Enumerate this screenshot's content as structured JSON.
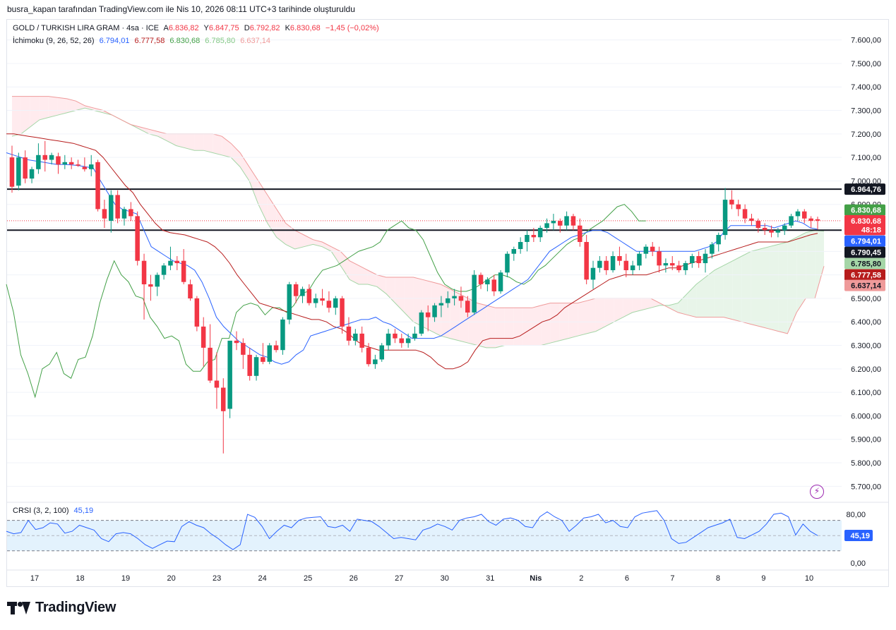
{
  "header": {
    "author_line": "busra_kapan tarafından TradingView.com ile Nis 10, 2026 08:11 UTC+3 tarihinde oluşturuldu"
  },
  "legend": {
    "symbol": "GOLD / TURKISH LIRA GRAM · 4sa · ICE",
    "open_label": "A",
    "open": "6.836,82",
    "high_label": "Y",
    "high": "6.847,75",
    "low_label": "D",
    "low": "6.792,82",
    "close_label": "K",
    "close": "6.830,68",
    "change": "−1,45 (−0,02%)",
    "ichimoku_name": "İchimoku (9, 26, 52, 26)",
    "ichimoku_conversion": "6.794,01",
    "ichimoku_base": "6.777,58",
    "ichimoku_lagging": "6.830,68",
    "ichimoku_span_a": "6.785,80",
    "ichimoku_span_b": "6.637,14",
    "crsi_name": "CRSI (3, 2, 100)",
    "crsi_value": "45,19"
  },
  "colors": {
    "up": "#089981",
    "down": "#f23645",
    "conversion": "#2962ff",
    "base": "#b71c1c",
    "lagging": "#43a047",
    "span_a": "#a5d6a7",
    "span_b": "#ef9a9a",
    "cloud_bull": "#e8f5e9",
    "cloud_bear": "#ffebee",
    "crsi": "#2962ff",
    "crsi_band": "#e3f2fd"
  },
  "price_axis": {
    "ticks": [
      "7.600,00",
      "7.500,00",
      "7.400,00",
      "7.300,00",
      "7.200,00",
      "7.100,00",
      "7.000,00",
      "6.900,00",
      "6.800,00",
      "6.700,00",
      "6.600,00",
      "6.500,00",
      "6.400,00",
      "6.300,00",
      "6.200,00",
      "6.100,00",
      "6.000,00",
      "5.900,00",
      "5.800,00",
      "5.700,00"
    ],
    "tick_values": [
      7600,
      7500,
      7400,
      7300,
      7200,
      7100,
      7000,
      6900,
      6800,
      6700,
      6600,
      6500,
      6400,
      6300,
      6200,
      6100,
      6000,
      5900,
      5800,
      5700
    ],
    "labels": [
      {
        "text": "6.964,76",
        "value": 6964.76,
        "bg": "#131722",
        "fg": "#ffffff"
      },
      {
        "text": "6.830,68",
        "value": 6876,
        "bg": "#43a047",
        "fg": "#ffffff"
      },
      {
        "text": "6.830,68",
        "value": 6830.68,
        "bg": "#f23645",
        "fg": "#ffffff"
      },
      {
        "text": "48:18",
        "value": 6793,
        "bg": "#f23645",
        "fg": "#ffffff"
      },
      {
        "text": "6.794,01",
        "value": 6744,
        "bg": "#2962ff",
        "fg": "#ffffff"
      },
      {
        "text": "6.790,45",
        "value": 6696,
        "bg": "#131722",
        "fg": "#ffffff"
      },
      {
        "text": "6.785,80",
        "value": 6648,
        "bg": "#a5d6a7",
        "fg": "#131722"
      },
      {
        "text": "6.777,58",
        "value": 6600,
        "bg": "#b71c1c",
        "fg": "#ffffff"
      },
      {
        "text": "6.637,14",
        "value": 6555,
        "bg": "#ef9a9a",
        "fg": "#131722"
      }
    ]
  },
  "crsi_axis": {
    "ticks": [
      "80,00",
      "0,00"
    ],
    "tick_values": [
      80,
      0
    ],
    "value_label": "45,19"
  },
  "time_axis": {
    "labels": [
      "17",
      "18",
      "19",
      "20",
      "23",
      "24",
      "25",
      "26",
      "27",
      "30",
      "31",
      "Nis",
      "2",
      "6",
      "7",
      "8",
      "9",
      "10"
    ]
  },
  "chart_data": {
    "type": "candlestick",
    "title": "GOLD / TURKISH LIRA GRAM · 4sa · ICE",
    "ylim": [
      5650,
      7680
    ],
    "horizontal_lines": [
      6964.76,
      6790.45
    ],
    "last_price": 6830.68,
    "candles": [
      [
        7100,
        7150,
        6950,
        6975
      ],
      [
        6980,
        7120,
        6960,
        7100
      ],
      [
        7100,
        7130,
        6990,
        7010
      ],
      [
        7010,
        7060,
        6990,
        7050
      ],
      [
        7050,
        7160,
        7030,
        7110
      ],
      [
        7110,
        7170,
        7040,
        7090
      ],
      [
        7090,
        7120,
        7070,
        7110
      ],
      [
        7105,
        7120,
        7030,
        7070
      ],
      [
        7070,
        7110,
        7050,
        7080
      ],
      [
        7080,
        7100,
        7050,
        7070
      ],
      [
        7070,
        7090,
        7060,
        7065
      ],
      [
        7060,
        7100,
        7040,
        7050
      ],
      [
        7050,
        7110,
        7020,
        7070
      ],
      [
        7080,
        7090,
        6870,
        6880
      ],
      [
        6880,
        6920,
        6800,
        6840
      ],
      [
        6830,
        6960,
        6780,
        6940
      ],
      [
        6940,
        6960,
        6820,
        6840
      ],
      [
        6840,
        6890,
        6810,
        6880
      ],
      [
        6880,
        6910,
        6830,
        6850
      ],
      [
        6850,
        6870,
        6640,
        6660
      ],
      [
        6660,
        6690,
        6410,
        6560
      ],
      [
        6560,
        6600,
        6490,
        6550
      ],
      [
        6550,
        6610,
        6510,
        6600
      ],
      [
        6600,
        6650,
        6580,
        6640
      ],
      [
        6640,
        6720,
        6620,
        6660
      ],
      [
        6660,
        6680,
        6620,
        6650
      ],
      [
        6660,
        6710,
        6560,
        6570
      ],
      [
        6560,
        6580,
        6490,
        6500
      ],
      [
        6500,
        6510,
        6360,
        6380
      ],
      [
        6380,
        6420,
        6210,
        6290
      ],
      [
        6290,
        6390,
        6140,
        6150
      ],
      [
        6150,
        6270,
        6030,
        6120
      ],
      [
        6120,
        6160,
        5840,
        6020
      ],
      [
        6030,
        6300,
        5990,
        6320
      ],
      [
        6320,
        6360,
        6280,
        6310
      ],
      [
        6310,
        6330,
        6200,
        6260
      ],
      [
        6260,
        6290,
        6150,
        6170
      ],
      [
        6170,
        6260,
        6150,
        6250
      ],
      [
        6250,
        6310,
        6220,
        6230
      ],
      [
        6230,
        6310,
        6220,
        6300
      ],
      [
        6300,
        6320,
        6270,
        6280
      ],
      [
        6280,
        6420,
        6260,
        6410
      ],
      [
        6410,
        6570,
        6390,
        6560
      ],
      [
        6560,
        6570,
        6480,
        6510
      ],
      [
        6510,
        6550,
        6480,
        6540
      ],
      [
        6540,
        6560,
        6470,
        6480
      ],
      [
        6480,
        6520,
        6460,
        6500
      ],
      [
        6500,
        6540,
        6470,
        6490
      ],
      [
        6490,
        6530,
        6440,
        6460
      ],
      [
        6460,
        6510,
        6430,
        6500
      ],
      [
        6500,
        6510,
        6350,
        6380
      ],
      [
        6380,
        6420,
        6300,
        6320
      ],
      [
        6320,
        6370,
        6300,
        6350
      ],
      [
        6350,
        6380,
        6270,
        6290
      ],
      [
        6290,
        6310,
        6210,
        6220
      ],
      [
        6220,
        6260,
        6200,
        6240
      ],
      [
        6240,
        6310,
        6230,
        6300
      ],
      [
        6300,
        6370,
        6280,
        6350
      ],
      [
        6350,
        6370,
        6310,
        6330
      ],
      [
        6330,
        6350,
        6290,
        6310
      ],
      [
        6310,
        6350,
        6290,
        6330
      ],
      [
        6330,
        6380,
        6320,
        6350
      ],
      [
        6350,
        6450,
        6340,
        6440
      ],
      [
        6440,
        6470,
        6360,
        6420
      ],
      [
        6420,
        6480,
        6400,
        6470
      ],
      [
        6470,
        6510,
        6420,
        6480
      ],
      [
        6480,
        6530,
        6460,
        6500
      ],
      [
        6500,
        6540,
        6470,
        6510
      ],
      [
        6510,
        6550,
        6460,
        6490
      ],
      [
        6490,
        6510,
        6420,
        6440
      ],
      [
        6440,
        6620,
        6430,
        6600
      ],
      [
        6600,
        6610,
        6540,
        6560
      ],
      [
        6560,
        6590,
        6530,
        6580
      ],
      [
        6580,
        6600,
        6510,
        6530
      ],
      [
        6530,
        6620,
        6520,
        6610
      ],
      [
        6610,
        6700,
        6590,
        6690
      ],
      [
        6690,
        6720,
        6660,
        6710
      ],
      [
        6710,
        6760,
        6690,
        6740
      ],
      [
        6740,
        6790,
        6700,
        6770
      ],
      [
        6770,
        6800,
        6740,
        6760
      ],
      [
        6760,
        6810,
        6740,
        6800
      ],
      [
        6800,
        6840,
        6780,
        6820
      ],
      [
        6820,
        6860,
        6790,
        6830
      ],
      [
        6830,
        6840,
        6780,
        6810
      ],
      [
        6810,
        6870,
        6790,
        6850
      ],
      [
        6850,
        6860,
        6790,
        6810
      ],
      [
        6810,
        6840,
        6720,
        6740
      ],
      [
        6740,
        6770,
        6560,
        6580
      ],
      [
        6580,
        6660,
        6540,
        6630
      ],
      [
        6630,
        6680,
        6610,
        6660
      ],
      [
        6660,
        6680,
        6600,
        6620
      ],
      [
        6620,
        6700,
        6610,
        6680
      ],
      [
        6680,
        6720,
        6640,
        6660
      ],
      [
        6660,
        6690,
        6590,
        6620
      ],
      [
        6620,
        6660,
        6600,
        6640
      ],
      [
        6640,
        6700,
        6620,
        6690
      ],
      [
        6690,
        6730,
        6670,
        6720
      ],
      [
        6720,
        6740,
        6680,
        6700
      ],
      [
        6700,
        6720,
        6610,
        6640
      ],
      [
        6640,
        6670,
        6610,
        6650
      ],
      [
        6650,
        6680,
        6620,
        6640
      ],
      [
        6640,
        6660,
        6610,
        6620
      ],
      [
        6620,
        6660,
        6600,
        6650
      ],
      [
        6650,
        6690,
        6630,
        6680
      ],
      [
        6680,
        6700,
        6630,
        6650
      ],
      [
        6650,
        6710,
        6610,
        6690
      ],
      [
        6690,
        6740,
        6670,
        6730
      ],
      [
        6730,
        6780,
        6700,
        6770
      ],
      [
        6770,
        6970,
        6750,
        6920
      ],
      [
        6920,
        6960,
        6880,
        6900
      ],
      [
        6900,
        6920,
        6850,
        6880
      ],
      [
        6880,
        6900,
        6820,
        6840
      ],
      [
        6840,
        6860,
        6810,
        6830
      ],
      [
        6830,
        6840,
        6780,
        6800
      ],
      [
        6800,
        6820,
        6770,
        6790
      ],
      [
        6790,
        6810,
        6760,
        6780
      ],
      [
        6780,
        6800,
        6760,
        6790
      ],
      [
        6790,
        6820,
        6770,
        6810
      ],
      [
        6810,
        6860,
        6800,
        6850
      ],
      [
        6850,
        6880,
        6830,
        6870
      ],
      [
        6870,
        6880,
        6820,
        6840
      ],
      [
        6840,
        6850,
        6800,
        6830
      ],
      [
        6836.82,
        6847.75,
        6792.82,
        6830.68
      ]
    ],
    "conversion_line": [
      7120,
      7110,
      7100,
      7090,
      7085,
      7080,
      7075,
      7070,
      7070,
      7068,
      7065,
      7060,
      7055,
      7000,
      6950,
      6900,
      6880,
      6870,
      6860,
      6790,
      6720,
      6700,
      6680,
      6660,
      6650,
      6640,
      6620,
      6570,
      6500,
      6420,
      6380,
      6350,
      6320,
      6300,
      6280,
      6260,
      6250,
      6230,
      6220,
      6230,
      6260,
      6280,
      6340,
      6350,
      6360,
      6370,
      6380,
      6390,
      6400,
      6410,
      6410,
      6420,
      6400,
      6390,
      6370,
      6350,
      6330,
      6330,
      6330,
      6330,
      6340,
      6360,
      6380,
      6400,
      6420,
      6440,
      6460,
      6480,
      6500,
      6520,
      6540,
      6560,
      6580,
      6620,
      6660,
      6700,
      6720,
      6740,
      6760,
      6770,
      6780,
      6790,
      6790,
      6780,
      6760,
      6740,
      6720,
      6700,
      6700,
      6700,
      6700,
      6700,
      6700,
      6700,
      6700,
      6700,
      6710,
      6720,
      6740,
      6780,
      6810,
      6810,
      6810,
      6810,
      6810,
      6810,
      6800,
      6810,
      6820,
      6830,
      6820,
      6800,
      6794
    ],
    "base_line": [
      7200,
      7200,
      7195,
      7190,
      7185,
      7180,
      7175,
      7170,
      7165,
      7160,
      7150,
      7140,
      7130,
      7100,
      7060,
      7020,
      6980,
      6950,
      6900,
      6860,
      6820,
      6790,
      6780,
      6775,
      6770,
      6760,
      6750,
      6740,
      6720,
      6690,
      6650,
      6600,
      6560,
      6520,
      6480,
      6470,
      6460,
      6450,
      6440,
      6430,
      6420,
      6410,
      6410,
      6400,
      6380,
      6370,
      6350,
      6320,
      6300,
      6290,
      6280,
      6280,
      6280,
      6280,
      6280,
      6280,
      6270,
      6250,
      6220,
      6200,
      6200,
      6210,
      6230,
      6280,
      6320,
      6330,
      6330,
      6330,
      6330,
      6340,
      6360,
      6380,
      6400,
      6410,
      6430,
      6460,
      6480,
      6500,
      6520,
      6540,
      6560,
      6580,
      6590,
      6600,
      6600,
      6600,
      6600,
      6610,
      6620,
      6630,
      6630,
      6640,
      6650,
      6660,
      6670,
      6680,
      6690,
      6700,
      6710,
      6720,
      6730,
      6740,
      6740,
      6740,
      6740,
      6740,
      6750,
      6760,
      6770,
      6777
    ],
    "lagging_line": [
      6560,
      6440,
      6260,
      6180,
      6080,
      6200,
      6220,
      6270,
      6180,
      6160,
      6240,
      6250,
      6340,
      6480,
      6580,
      6660,
      6600,
      6570,
      6510,
      6500,
      6420,
      6380,
      6330,
      6340,
      6320,
      6220,
      6190,
      6190,
      6230,
      6240,
      6330,
      6330,
      6440,
      6470,
      6480,
      6470,
      6430,
      6460,
      6460,
      6440,
      6470,
      6520,
      6530,
      6580,
      6620,
      6630,
      6640,
      6660,
      6680,
      6700,
      6710,
      6720,
      6740,
      6790,
      6810,
      6830,
      6800,
      6790,
      6750,
      6680,
      6610,
      6560,
      6540,
      6530,
      6530,
      6540,
      6560,
      6580,
      6600,
      6600,
      6590,
      6570,
      6560,
      6580,
      6620,
      6640,
      6670,
      6700,
      6730,
      6750,
      6760,
      6790,
      6810,
      6830,
      6860,
      6890,
      6900,
      6870,
      6830,
      6830
    ],
    "span_a": [
      7190,
      7200,
      7230,
      7260,
      7270,
      7280,
      7290,
      7300,
      7310,
      7300,
      7290,
      7280,
      7260,
      7240,
      7220,
      7200,
      7190,
      7170,
      7150,
      7140,
      7130,
      7130,
      7120,
      7110,
      7100,
      7060,
      7000,
      6900,
      6820,
      6760,
      6730,
      6710,
      6720,
      6730,
      6720,
      6700,
      6640,
      6580,
      6560,
      6560,
      6550,
      6520,
      6480,
      6440,
      6400,
      6380,
      6360,
      6340,
      6330,
      6320,
      6310,
      6300,
      6290,
      6290,
      6300,
      6300,
      6300,
      6300,
      6300,
      6310,
      6320,
      6330,
      6340,
      6350,
      6360,
      6380,
      6400,
      6420,
      6440,
      6450,
      6460,
      6470,
      6470,
      6480,
      6520,
      6560,
      6590,
      6620,
      6640,
      6660,
      6680,
      6700,
      6710,
      6720,
      6730,
      6740,
      6760,
      6780,
      6790,
      6786
    ],
    "span_b": [
      7360,
      7360,
      7360,
      7360,
      7360,
      7355,
      7350,
      7340,
      7320,
      7310,
      7300,
      7280,
      7260,
      7240,
      7230,
      7220,
      7210,
      7200,
      7200,
      7200,
      7200,
      7200,
      7200,
      7190,
      7160,
      7120,
      7060,
      7000,
      6940,
      6880,
      6820,
      6790,
      6770,
      6750,
      6740,
      6720,
      6700,
      6660,
      6640,
      6620,
      6600,
      6590,
      6590,
      6590,
      6590,
      6580,
      6570,
      6560,
      6540,
      6520,
      6500,
      6480,
      6470,
      6460,
      6460,
      6460,
      6460,
      6460,
      6470,
      6480,
      6480,
      6480,
      6480,
      6490,
      6500,
      6500,
      6500,
      6500,
      6500,
      6500,
      6500,
      6480,
      6460,
      6440,
      6430,
      6420,
      6420,
      6420,
      6420,
      6410,
      6400,
      6390,
      6380,
      6370,
      6360,
      6350,
      6440,
      6500,
      6500,
      6637
    ],
    "crsi": [
      52,
      48,
      50,
      70,
      55,
      58,
      66,
      64,
      49,
      52,
      62,
      58,
      54,
      40,
      35,
      48,
      50,
      48,
      40,
      30,
      24,
      30,
      36,
      35,
      60,
      68,
      62,
      58,
      48,
      40,
      30,
      22,
      30,
      80,
      75,
      60,
      40,
      52,
      62,
      58,
      70,
      74,
      75,
      76,
      60,
      58,
      62,
      52,
      72,
      70,
      68,
      60,
      50,
      40,
      42,
      40,
      38,
      54,
      58,
      64,
      60,
      54,
      70,
      74,
      76,
      80,
      68,
      62,
      72,
      74,
      70,
      60,
      58,
      76,
      84,
      76,
      70,
      52,
      62,
      74,
      76,
      80,
      66,
      70,
      60,
      58,
      76,
      82,
      84,
      86,
      70,
      40,
      32,
      34,
      42,
      50,
      58,
      62,
      66,
      72,
      42,
      40,
      46,
      52,
      64,
      80,
      82,
      76,
      46,
      64,
      52,
      45
    ]
  }
}
